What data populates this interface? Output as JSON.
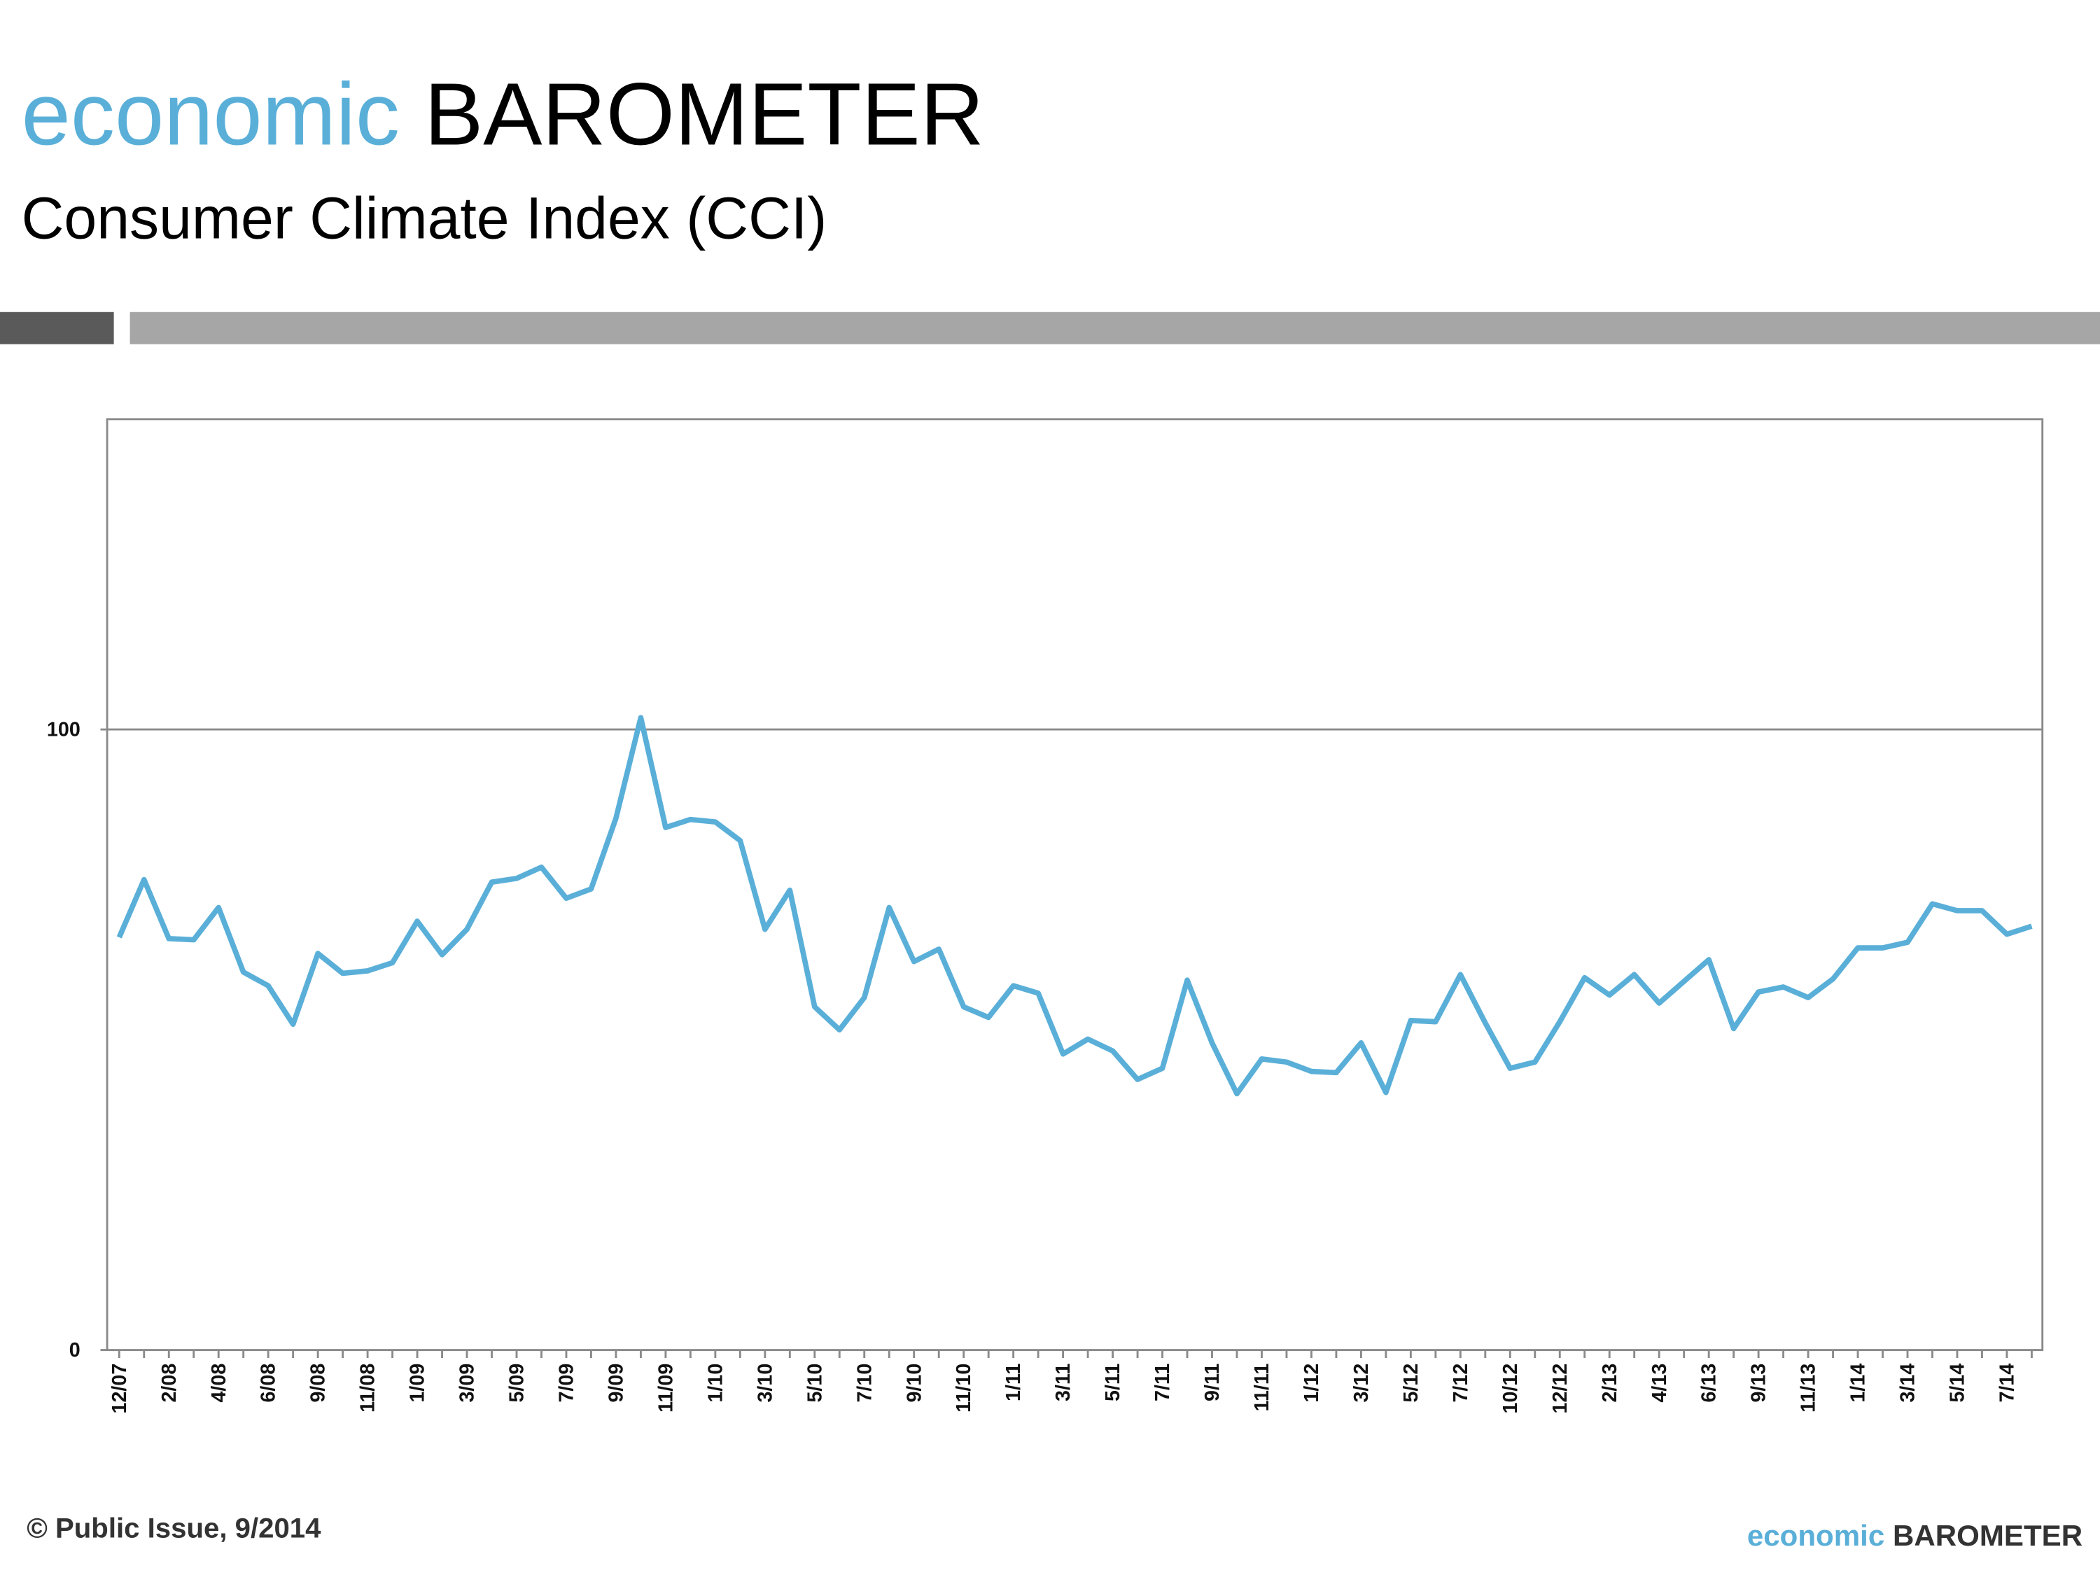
{
  "header": {
    "brand": [
      "economic",
      "BAROMETER"
    ],
    "subtitle": "Consumer Climate Index (CCI)"
  },
  "footer": {
    "copyright": "© Public Issue, 9/2014",
    "brand": [
      "economic",
      "BAROMETER"
    ]
  },
  "chart_data": {
    "type": "line",
    "color": "#5aafd8",
    "categories": [
      "12/07",
      null,
      "2/08",
      null,
      "4/08",
      null,
      "6/08",
      null,
      "9/08",
      null,
      "11/08",
      null,
      "1/09",
      null,
      "3/09",
      null,
      "5/09",
      null,
      "7/09",
      null,
      "9/09",
      null,
      "11/09",
      null,
      "1/10",
      null,
      "3/10",
      null,
      "5/10",
      null,
      "7/10",
      null,
      "9/10",
      null,
      "11/10",
      null,
      "1/11",
      null,
      "3/11",
      null,
      "5/11",
      null,
      "7/11",
      null,
      "9/11",
      null,
      "11/11",
      null,
      "1/12",
      null,
      "3/12",
      null,
      "5/12",
      null,
      "7/12",
      null,
      "10/12",
      null,
      "12/12",
      null,
      "2/13",
      null,
      "4/13",
      null,
      "6/13",
      null,
      "9/13",
      null,
      "11/13",
      null,
      "1/14",
      null,
      "3/14",
      null,
      "5/14",
      null,
      "7/14",
      null
    ],
    "values": [
      66.5,
      75.8,
      66.3,
      66.1,
      71.3,
      60.9,
      58.7,
      52.5,
      63.9,
      60.7,
      61.1,
      62.4,
      69.1,
      63.7,
      67.8,
      75.4,
      76.0,
      77.8,
      72.8,
      74.3,
      85.7,
      101.9,
      84.2,
      85.5,
      85.1,
      82.1,
      67.8,
      74.1,
      55.3,
      51.6,
      56.8,
      71.3,
      62.6,
      64.6,
      55.3,
      53.6,
      58.7,
      57.5,
      47.7,
      50.1,
      48.2,
      43.6,
      45.4,
      59.6,
      49.5,
      41.3,
      46.9,
      46.4,
      44.9,
      44.7,
      49.5,
      41.5,
      53.1,
      52.9,
      60.5,
      52.7,
      45.4,
      46.4,
      52.9,
      60.0,
      57.2,
      60.5,
      55.9,
      59.4,
      62.9,
      51.8,
      57.7,
      58.5,
      56.8,
      59.8,
      64.8,
      64.8,
      65.7,
      71.9,
      70.8,
      70.8,
      67.0,
      68.3
    ],
    "ylim": [
      0,
      150
    ],
    "yticks": [
      0,
      100
    ],
    "grid": true
  }
}
